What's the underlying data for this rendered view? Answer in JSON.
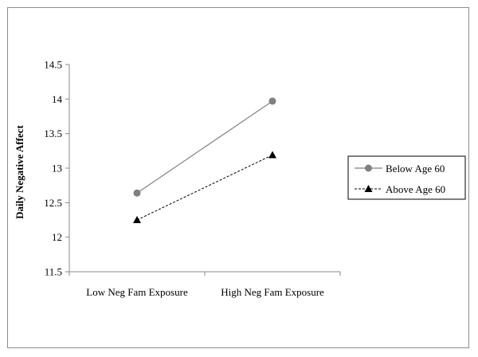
{
  "chart_data": {
    "type": "line",
    "title": "",
    "xlabel": "",
    "ylabel": "Daily Negative Affect",
    "categories": [
      "Low Neg Fam Exposure",
      "High Neg Fam Exposure"
    ],
    "ylim": [
      11.5,
      14.5
    ],
    "yticks": [
      "11.5",
      "12",
      "12.5",
      "13",
      "13.5",
      "14",
      "14.5"
    ],
    "grid": false,
    "legend_position": "right",
    "series": [
      {
        "name": "Below Age 60",
        "values": [
          12.64,
          13.97
        ],
        "color": "#808080",
        "line_style": "solid",
        "marker": "circle"
      },
      {
        "name": "Above Age 60",
        "values": [
          12.25,
          13.19
        ],
        "color": "#000000",
        "line_style": "dashed",
        "marker": "triangle"
      }
    ]
  }
}
